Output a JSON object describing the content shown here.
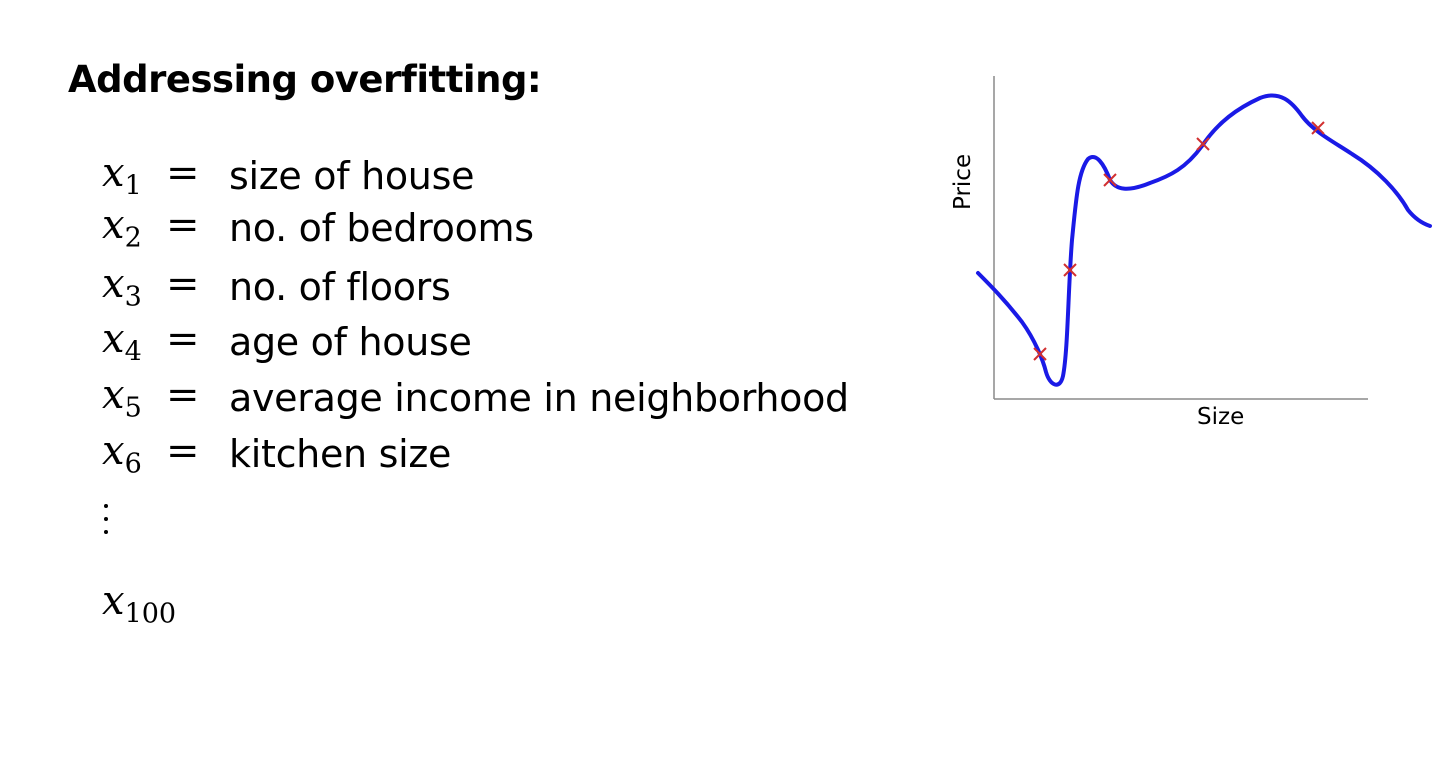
{
  "slide": {
    "title": "Addressing overfitting:"
  },
  "features": [
    {
      "var": "x",
      "sub": "1",
      "eq": "=",
      "desc": "size of house"
    },
    {
      "var": "x",
      "sub": "2",
      "eq": "=",
      "desc": "no. of bedrooms"
    },
    {
      "var": "x",
      "sub": "3",
      "eq": "=",
      "desc": "no. of floors"
    },
    {
      "var": "x",
      "sub": "4",
      "eq": "=",
      "desc": "age of house"
    },
    {
      "var": "x",
      "sub": "5",
      "eq": "=",
      "desc": "average income in neighborhood"
    },
    {
      "var": "x",
      "sub": "6",
      "eq": "=",
      "desc": "kitchen size"
    }
  ],
  "last_feature": {
    "var": "x",
    "sub": "100"
  },
  "figure": {
    "ylabel": "Price",
    "xlabel": "Size",
    "curve_color": "#1a1ae6",
    "point_color": "#d23030"
  }
}
